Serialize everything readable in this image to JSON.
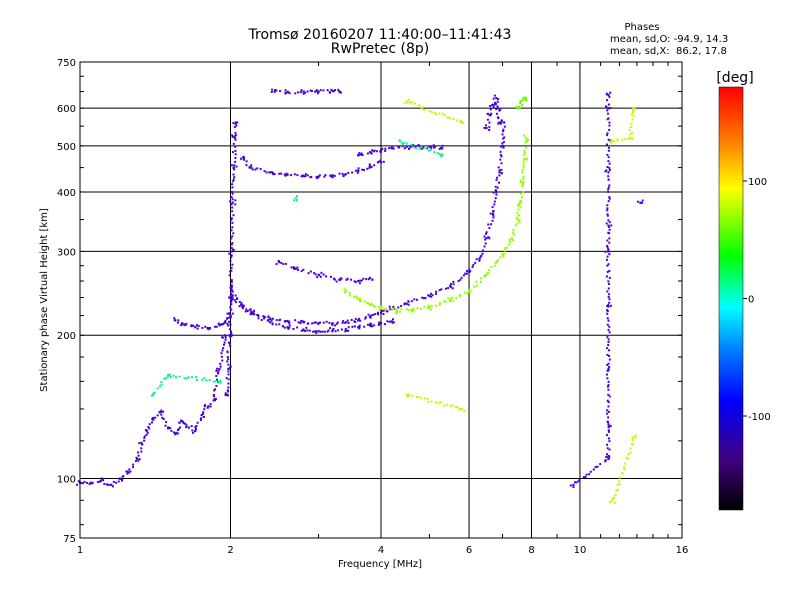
{
  "header": {
    "title": "Tromsø 20160207 11:40:00–11:41:43",
    "subtitle": "RwPretec (8p)"
  },
  "stats": {
    "heading": "Phases",
    "line_o": "mean, sd,O: -94.9, 14.3",
    "line_x": "mean, sd,X:  86.2, 17.8"
  },
  "chart_data": {
    "type": "scatter",
    "xlabel": "Frequency [MHz]",
    "ylabel": "Stationary phase Virtual Height [km]",
    "x_scale": "log",
    "y_scale": "log",
    "xlim": [
      1,
      16
    ],
    "ylim": [
      75,
      750
    ],
    "x_ticks": [
      1,
      2,
      4,
      6,
      8,
      10,
      16
    ],
    "y_ticks": [
      75,
      100,
      200,
      300,
      400,
      500,
      600,
      750
    ],
    "grid": true,
    "colorbar": {
      "label": "[deg]",
      "range": [
        -180,
        180
      ],
      "ticks": [
        100,
        0,
        -100
      ]
    },
    "series": [
      {
        "phase": -100,
        "points": [
          [
            1.0,
            98
          ],
          [
            1.05,
            98
          ],
          [
            1.1,
            99
          ],
          [
            1.15,
            97
          ],
          [
            1.2,
            100
          ],
          [
            1.25,
            103
          ],
          [
            1.3,
            110
          ],
          [
            1.33,
            118
          ],
          [
            1.36,
            126
          ],
          [
            1.4,
            133
          ],
          [
            1.45,
            138
          ],
          [
            1.5,
            128
          ],
          [
            1.55,
            124
          ],
          [
            1.6,
            132
          ],
          [
            1.65,
            128
          ],
          [
            1.7,
            126
          ],
          [
            1.75,
            136
          ],
          [
            1.8,
            141
          ],
          [
            1.85,
            146
          ],
          [
            1.9,
            170
          ],
          [
            1.95,
            200
          ]
        ]
      },
      {
        "phase": -105,
        "points": [
          [
            1.55,
            215
          ],
          [
            1.6,
            212
          ],
          [
            1.7,
            208
          ],
          [
            1.8,
            207
          ],
          [
            1.9,
            210
          ],
          [
            1.95,
            213
          ],
          [
            2.0,
            220
          ]
        ]
      },
      {
        "phase": -100,
        "points": [
          [
            1.97,
            150
          ],
          [
            1.98,
            170
          ],
          [
            1.99,
            200
          ],
          [
            2.0,
            240
          ],
          [
            2.01,
            300
          ],
          [
            2.02,
            380
          ],
          [
            2.03,
            450
          ],
          [
            2.04,
            520
          ],
          [
            2.05,
            560
          ]
        ]
      },
      {
        "phase": -95,
        "points": [
          [
            2.0,
            252
          ],
          [
            2.1,
            232
          ],
          [
            2.2,
            224
          ],
          [
            2.4,
            217
          ],
          [
            2.6,
            214
          ],
          [
            2.8,
            213
          ],
          [
            3.0,
            212
          ],
          [
            3.2,
            212
          ],
          [
            3.4,
            213
          ],
          [
            3.6,
            215
          ],
          [
            3.8,
            219
          ],
          [
            4.0,
            223
          ],
          [
            4.2,
            227
          ],
          [
            4.5,
            233
          ],
          [
            5.0,
            242
          ],
          [
            5.5,
            254
          ],
          [
            6.0,
            272
          ],
          [
            6.3,
            290
          ],
          [
            6.5,
            320
          ],
          [
            6.7,
            360
          ],
          [
            6.8,
            400
          ],
          [
            6.9,
            440
          ],
          [
            7.0,
            500
          ],
          [
            7.05,
            560
          ]
        ]
      },
      {
        "phase": -100,
        "points": [
          [
            2.0,
            240
          ],
          [
            2.2,
            222
          ],
          [
            2.4,
            213
          ],
          [
            2.6,
            208
          ],
          [
            2.8,
            205
          ],
          [
            3.0,
            204
          ],
          [
            3.2,
            205
          ],
          [
            3.4,
            206
          ],
          [
            3.6,
            208
          ],
          [
            3.8,
            210
          ],
          [
            4.0,
            212
          ],
          [
            4.2,
            214
          ]
        ]
      },
      {
        "phase": -100,
        "points": [
          [
            2.1,
            470
          ],
          [
            2.2,
            450
          ],
          [
            2.4,
            440
          ],
          [
            2.6,
            435
          ],
          [
            2.8,
            432
          ],
          [
            3.0,
            431
          ],
          [
            3.2,
            432
          ],
          [
            3.4,
            436
          ],
          [
            3.6,
            443
          ],
          [
            3.8,
            452
          ],
          [
            4.0,
            462
          ]
        ]
      },
      {
        "phase": -90,
        "points": [
          [
            3.6,
            478
          ],
          [
            3.8,
            485
          ],
          [
            4.0,
            490
          ],
          [
            4.2,
            495
          ],
          [
            4.5,
            498
          ],
          [
            4.8,
            498
          ],
          [
            5.1,
            496
          ],
          [
            5.3,
            494
          ]
        ]
      },
      {
        "phase": -95,
        "points": [
          [
            2.5,
            285
          ],
          [
            2.7,
            276
          ],
          [
            3.0,
            268
          ],
          [
            3.3,
            262
          ],
          [
            3.6,
            260
          ],
          [
            3.8,
            264
          ]
        ]
      },
      {
        "phase": -100,
        "points": [
          [
            2.45,
            650
          ],
          [
            2.6,
            648
          ],
          [
            2.8,
            650
          ],
          [
            3.0,
            650
          ],
          [
            3.2,
            652
          ],
          [
            3.3,
            651
          ]
        ]
      },
      {
        "phase": -95,
        "points": [
          [
            6.5,
            545
          ],
          [
            6.6,
            580
          ],
          [
            6.7,
            610
          ],
          [
            6.8,
            630
          ],
          [
            6.85,
            600
          ],
          [
            6.9,
            560
          ]
        ]
      },
      {
        "phase": 90,
        "points": [
          [
            3.4,
            248
          ],
          [
            3.6,
            238
          ],
          [
            3.8,
            232
          ],
          [
            4.0,
            228
          ],
          [
            4.3,
            225
          ],
          [
            4.6,
            226
          ],
          [
            5.0,
            229
          ],
          [
            5.5,
            238
          ],
          [
            6.0,
            248
          ],
          [
            6.5,
            268
          ],
          [
            7.0,
            295
          ],
          [
            7.3,
            320
          ],
          [
            7.5,
            350
          ],
          [
            7.6,
            380
          ],
          [
            7.7,
            420
          ],
          [
            7.75,
            470
          ],
          [
            7.8,
            520
          ]
        ]
      },
      {
        "phase": 80,
        "points": [
          [
            7.5,
            600
          ],
          [
            7.6,
            615
          ],
          [
            7.7,
            630
          ],
          [
            7.8,
            625
          ]
        ]
      },
      {
        "phase": 20,
        "points": [
          [
            1.4,
            150
          ],
          [
            1.5,
            165
          ],
          [
            1.9,
            160
          ],
          [
            2.7,
            388
          ],
          [
            4.4,
            508
          ],
          [
            5.3,
            480
          ]
        ]
      },
      {
        "phase": -100,
        "points": [
          [
            11.4,
            640
          ],
          [
            11.4,
            600
          ],
          [
            11.4,
            440
          ],
          [
            11.4,
            340
          ],
          [
            11.4,
            300
          ],
          [
            11.4,
            230
          ],
          [
            11.4,
            170
          ],
          [
            11.4,
            130
          ],
          [
            11.4,
            110
          ],
          [
            9.7,
            97
          ],
          [
            13.2,
            380
          ]
        ]
      },
      {
        "phase": 100,
        "points": [
          [
            4.5,
            620
          ],
          [
            5.8,
            560
          ],
          [
            11.5,
            510
          ],
          [
            12.6,
            520
          ],
          [
            12.8,
            600
          ],
          [
            11.6,
            90
          ],
          [
            12.9,
            122
          ],
          [
            4.5,
            150
          ],
          [
            5.8,
            140
          ]
        ]
      }
    ]
  }
}
